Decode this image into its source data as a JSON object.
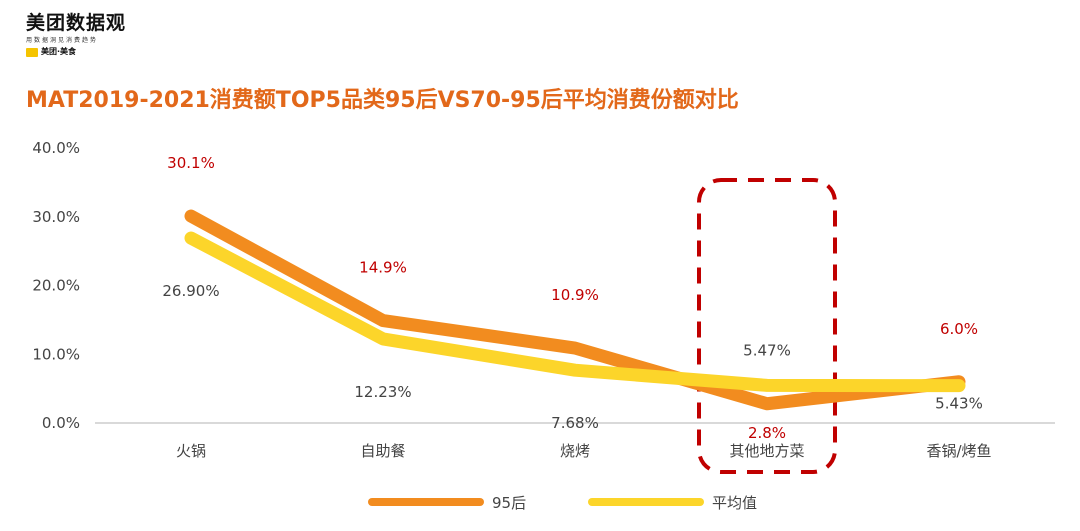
{
  "logo": {
    "name": "美团数据观",
    "slogan": "用数据洞见消费趋势",
    "brand": "美团·美食",
    "badge_color": "#f5c400"
  },
  "title": "MAT2019-2021消费额TOP5品类95后VS70-95后平均消费份额对比",
  "chart_data": {
    "type": "line",
    "title": "MAT2019-2021消费额TOP5品类95后VS70-95后平均消费份额对比",
    "categories": [
      "火锅",
      "自助餐",
      "烧烤",
      "其他地方菜",
      "香锅/烤鱼"
    ],
    "y_ticks": [
      "40.0%",
      "30.0%",
      "20.0%",
      "10.0%",
      "0.0%"
    ],
    "ylim": [
      0,
      40
    ],
    "grid": false,
    "legend_position": "bottom",
    "series": [
      {
        "name": "95后",
        "values": [
          30.1,
          14.9,
          10.9,
          2.8,
          6.0
        ],
        "labels": [
          "30.1%",
          "14.9%",
          "10.9%",
          "2.8%",
          "6.0%"
        ],
        "color": "#f28c1f",
        "label_color": "#c00000"
      },
      {
        "name": "平均值",
        "values": [
          26.9,
          12.23,
          7.68,
          5.47,
          5.43
        ],
        "labels": [
          "26.90%",
          "12.23%",
          "7.68%",
          "5.47%",
          "5.43%"
        ],
        "color": "#fcd52a",
        "label_color": "#444444"
      }
    ],
    "highlight": {
      "category": "其他地方菜",
      "style": "dashed-box",
      "color": "#c00000"
    }
  }
}
